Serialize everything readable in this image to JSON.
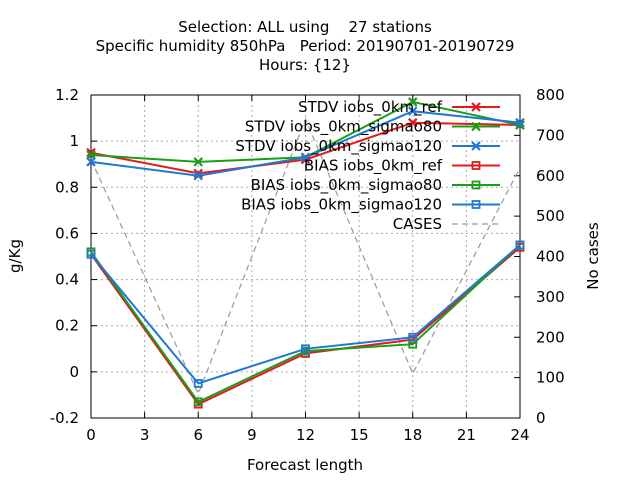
{
  "chart_data": {
    "type": "line",
    "title": [
      "Selection: ALL using    27 stations",
      "Specific humidity 850hPa   Period: 20190701-20190729",
      "Hours: {12}"
    ],
    "xlabel": "Forecast length",
    "ylabel": "g/Kg",
    "y2label": "No cases",
    "xlim": [
      0,
      24
    ],
    "ylim": [
      -0.2,
      1.2
    ],
    "y2lim": [
      0,
      800
    ],
    "x_ticks": [
      "0",
      "3",
      "6",
      "9",
      "12",
      "15",
      "18",
      "21",
      "24"
    ],
    "y_ticks": [
      "-0.2",
      "0",
      "0.2",
      "0.4",
      "0.6",
      "0.8",
      "1",
      "1.2"
    ],
    "y2_ticks": [
      "0",
      "100",
      "200",
      "300",
      "400",
      "500",
      "600",
      "700",
      "800"
    ],
    "grid": true,
    "legend_position": "top-right",
    "x": [
      0,
      6,
      12,
      18,
      24
    ],
    "series": [
      {
        "name": "STDV iobs_0km_ref",
        "values": [
          0.95,
          0.86,
          0.92,
          1.08,
          1.07
        ],
        "color": "#e41a1c",
        "marker": "x"
      },
      {
        "name": "STDV iobs_0km_sigmao80",
        "values": [
          0.94,
          0.91,
          0.93,
          1.17,
          1.07
        ],
        "color": "#1a9e1a",
        "marker": "x"
      },
      {
        "name": "STDV iobs_0km_sigmao120",
        "values": [
          0.91,
          0.85,
          0.93,
          1.13,
          1.08
        ],
        "color": "#1f78d4",
        "marker": "x"
      },
      {
        "name": "BIAS iobs_0km_ref",
        "values": [
          0.51,
          -0.14,
          0.08,
          0.14,
          0.54
        ],
        "color": "#e41a1c",
        "marker": "square"
      },
      {
        "name": "BIAS iobs_0km_sigmao80",
        "values": [
          0.52,
          -0.13,
          0.09,
          0.12,
          0.55
        ],
        "color": "#1a9e1a",
        "marker": "square"
      },
      {
        "name": "BIAS iobs_0km_sigmao120",
        "values": [
          0.51,
          -0.05,
          0.1,
          0.15,
          0.55
        ],
        "color": "#1f78d4",
        "marker": "square"
      },
      {
        "name": "CASES",
        "values": [
          640,
          60,
          740,
          110,
          620
        ],
        "axis": "y2",
        "color": "#999999",
        "dash": true,
        "marker": "none"
      }
    ]
  }
}
